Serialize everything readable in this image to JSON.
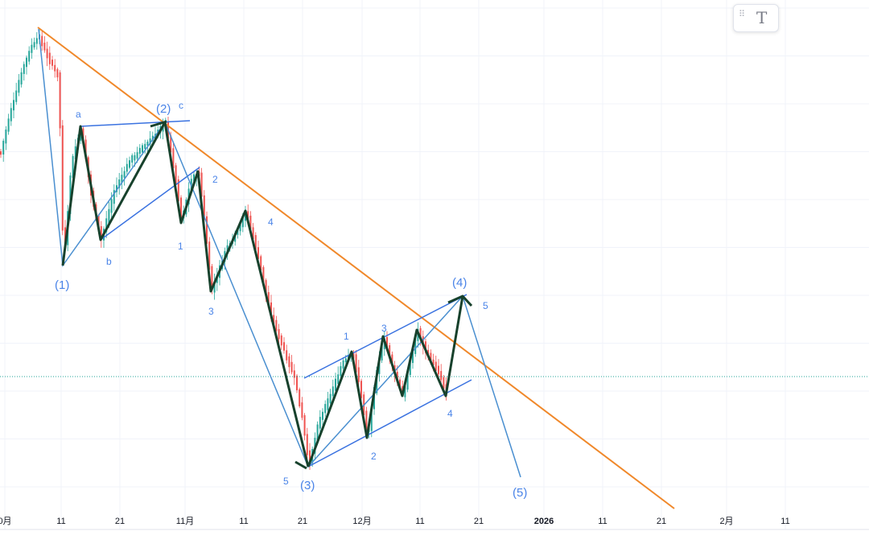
{
  "colors": {
    "trendline": "#f0882a",
    "channel": "#3a72e0",
    "projection": "#4a8fd0",
    "wave_path": "#17412c",
    "candle_up": "#26a69a",
    "candle_down": "#ef5350",
    "price_line": "#26a69a",
    "grid": "#f0f3fa",
    "label": "#4a84e8"
  },
  "toolbar": {
    "drag_icon": "grip-icon",
    "text_tool_icon": "text-tool-icon",
    "text_tool_glyph": "T"
  },
  "x_axis": {
    "ticks": [
      "0月",
      "11",
      "21",
      "11月",
      "11",
      "21",
      "12月",
      "11",
      "21",
      "2026",
      "11",
      "21",
      "2月",
      "11"
    ],
    "bold_ticks": [
      "2026"
    ]
  },
  "chart_data": {
    "type": "candlestick",
    "annotations": {
      "major_waves": [
        "(1)",
        "(2)",
        "(3)",
        "(4)",
        "(5)"
      ],
      "corrective_waves": [
        "a",
        "b",
        "c"
      ],
      "minor_waves_down": [
        "1",
        "2",
        "3",
        "4",
        "5"
      ],
      "minor_waves_up": [
        "1",
        "2",
        "3",
        "4",
        "5"
      ]
    },
    "descending_trendline": true,
    "channels": 3,
    "projection": "(4) to (5)"
  }
}
